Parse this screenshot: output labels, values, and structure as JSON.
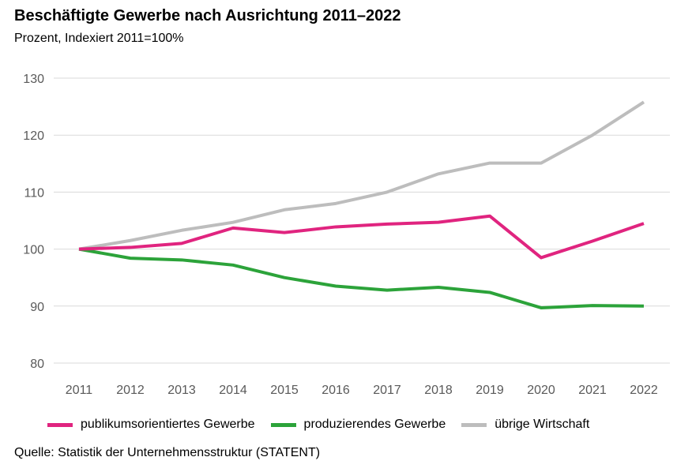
{
  "title": "Beschäftigte Gewerbe nach Ausrichtung 2011–2022",
  "subtitle": "Prozent, Indexiert 2011=100%",
  "source": "Quelle: Statistik der Unternehmensstruktur (STATENT)",
  "chart_data": {
    "type": "line",
    "categories": [
      "2011",
      "2012",
      "2013",
      "2014",
      "2015",
      "2016",
      "2017",
      "2018",
      "2019",
      "2020",
      "2021",
      "2022"
    ],
    "ylim": [
      80,
      130
    ],
    "yticks": [
      "80",
      "90",
      "100",
      "110",
      "120",
      "130"
    ],
    "grid": true,
    "legend_position": "bottom",
    "series": [
      {
        "name": "publikumsorientiertes Gewerbe",
        "color": "#e0247f",
        "values": [
          100,
          100.3,
          101.0,
          103.7,
          102.9,
          103.9,
          104.4,
          104.7,
          105.8,
          98.5,
          101.4,
          104.5
        ]
      },
      {
        "name": "produzierendes Gewerbe",
        "color": "#2ca33a",
        "values": [
          100,
          98.4,
          98.1,
          97.2,
          95.0,
          93.5,
          92.8,
          93.3,
          92.4,
          89.7,
          90.1,
          90.0
        ]
      },
      {
        "name": "übrige Wirtschaft",
        "color": "#bdbdbd",
        "values": [
          100,
          101.5,
          103.3,
          104.7,
          106.9,
          108.0,
          110.0,
          113.2,
          115.1,
          115.1,
          120.0,
          125.8
        ]
      }
    ]
  }
}
